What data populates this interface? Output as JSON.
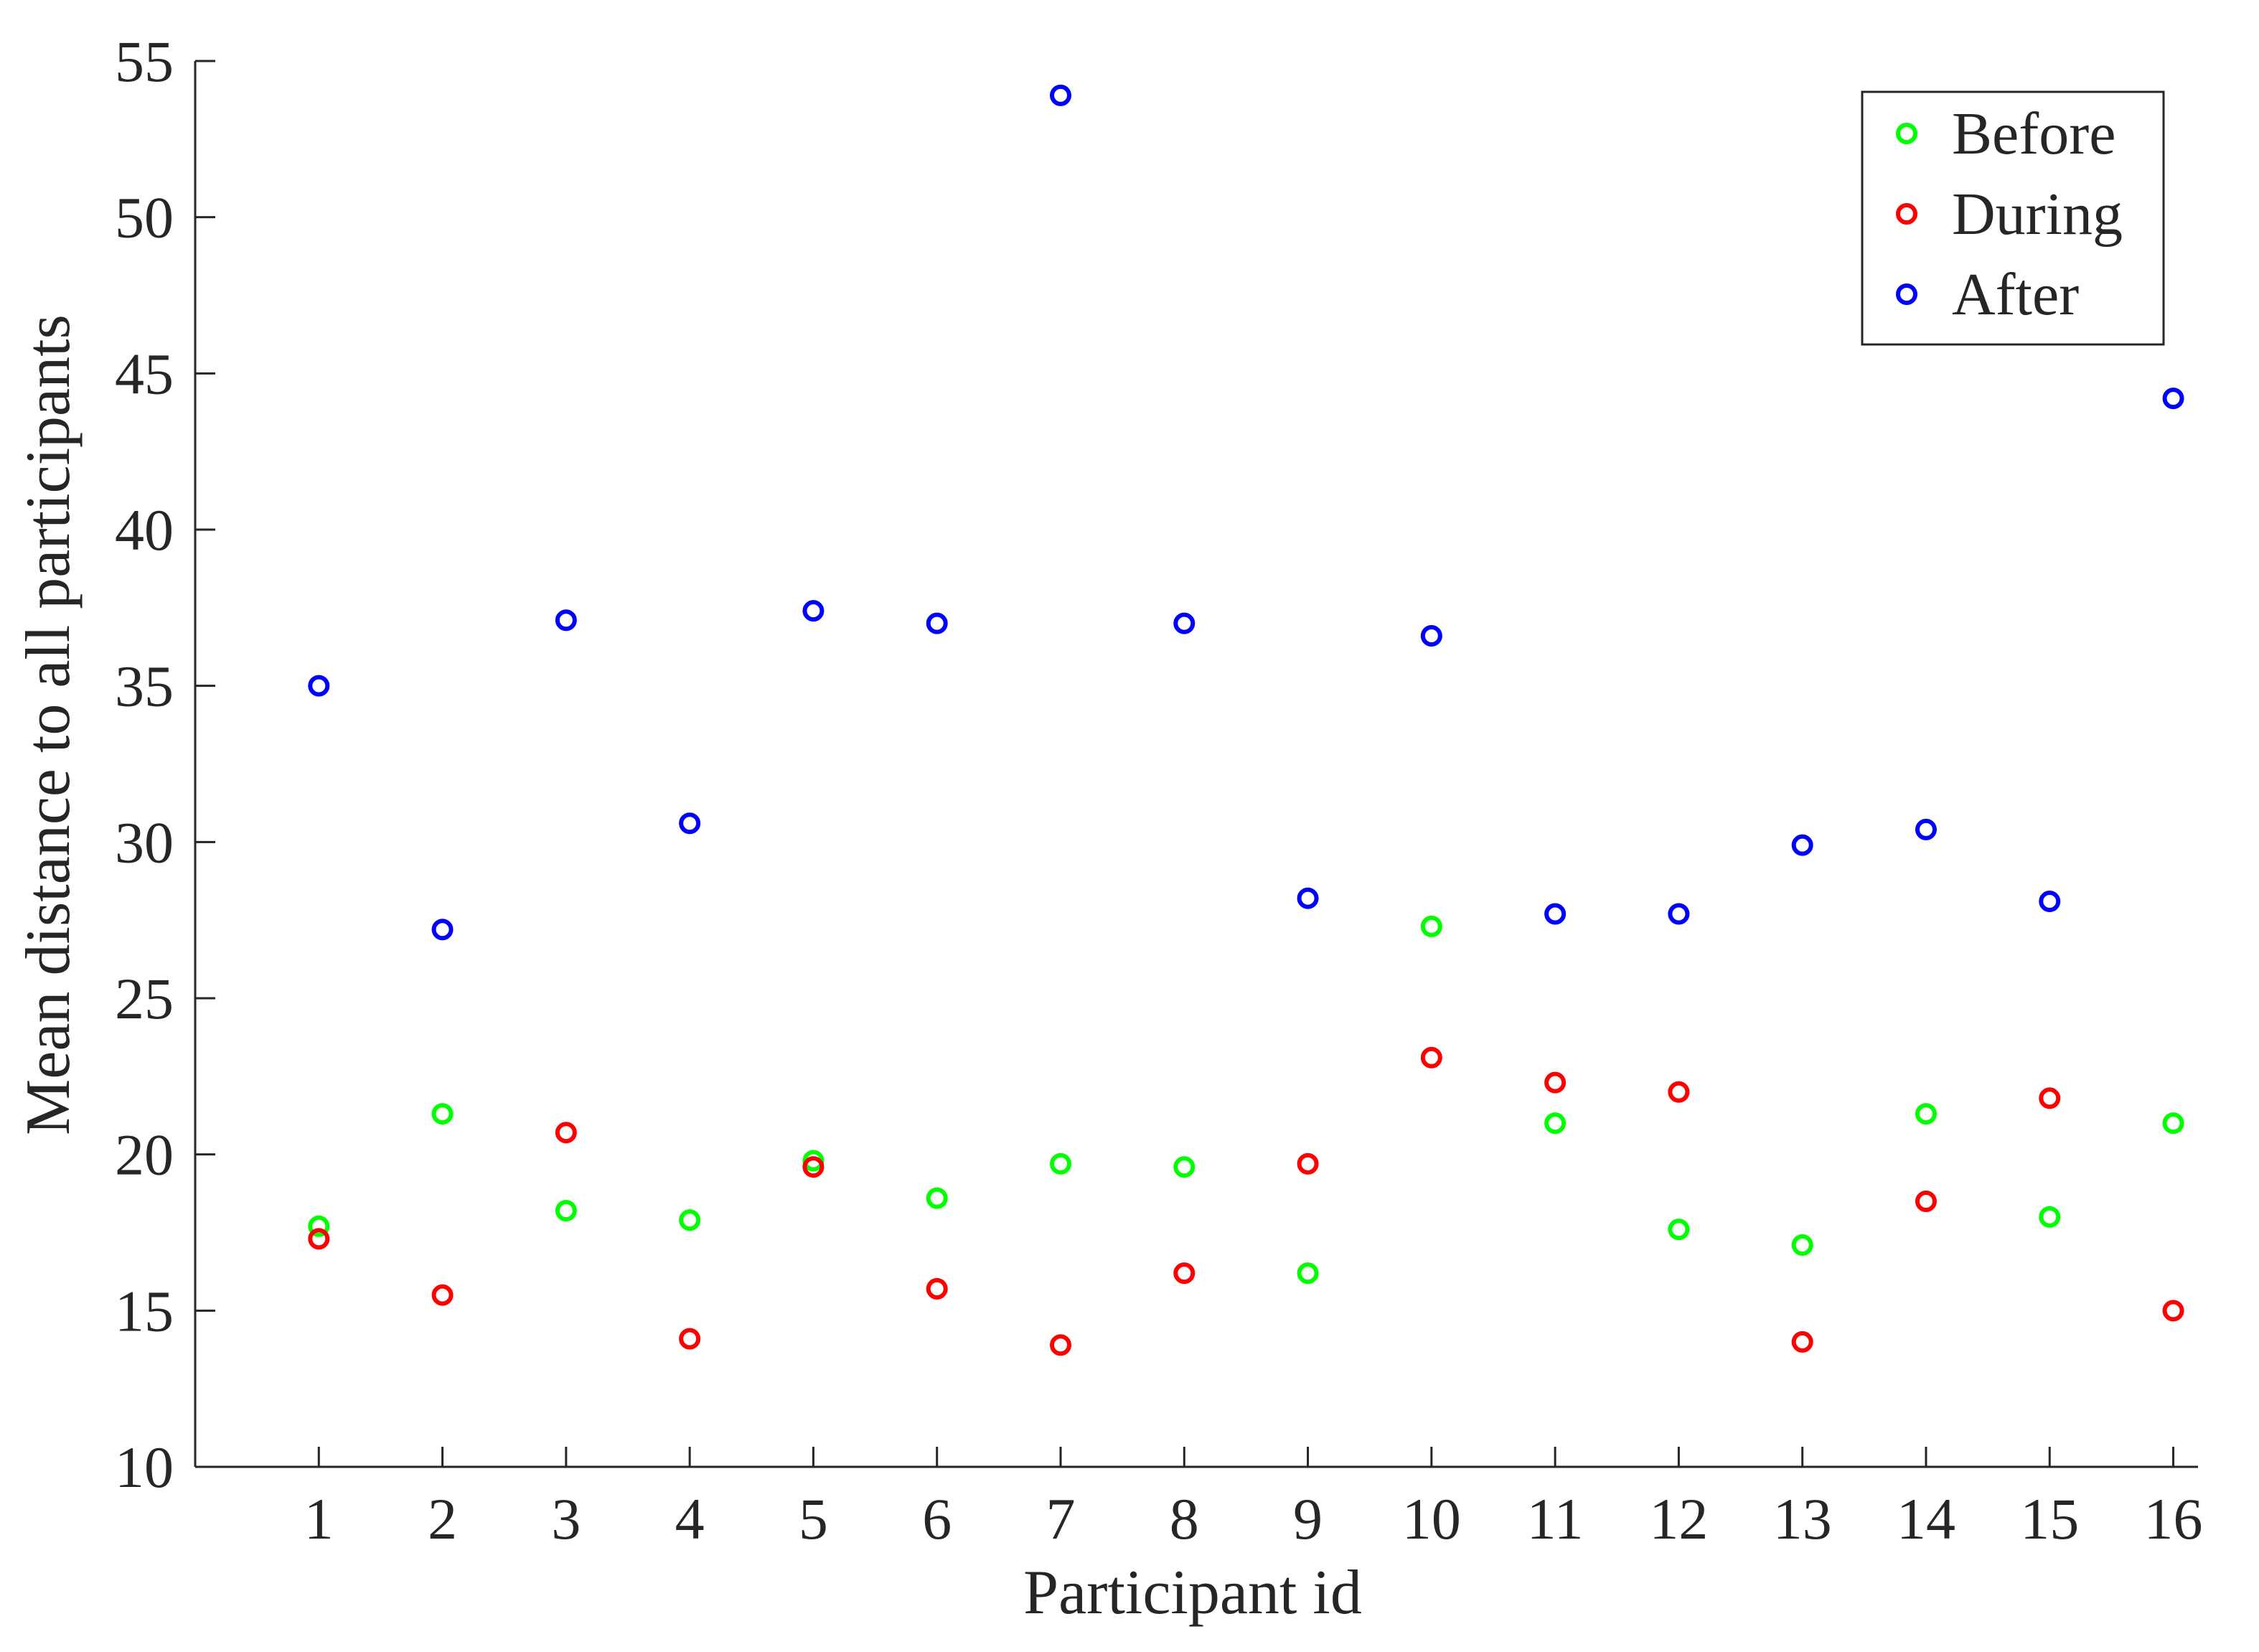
{
  "chart_data": {
    "type": "scatter",
    "xlabel": "Participant id",
    "ylabel": "Mean distance to all participants",
    "xlim": [
      0,
      16.2
    ],
    "ylim": [
      10,
      55
    ],
    "xticks": [
      1,
      2,
      3,
      4,
      5,
      6,
      7,
      8,
      9,
      10,
      11,
      12,
      13,
      14,
      15,
      16
    ],
    "yticks": [
      10,
      15,
      20,
      25,
      30,
      35,
      40,
      45,
      50,
      55
    ],
    "grid": false,
    "legend_position": "top-right",
    "series": [
      {
        "name": "Before",
        "color": "#00ff00",
        "marker": "circle-open",
        "x": [
          1,
          2,
          3,
          4,
          5,
          6,
          7,
          8,
          9,
          10,
          11,
          12,
          13,
          14,
          15,
          16
        ],
        "y": [
          17.7,
          21.3,
          18.2,
          17.9,
          19.8,
          18.6,
          19.7,
          19.6,
          16.2,
          27.3,
          21.0,
          17.6,
          17.1,
          21.3,
          18.0,
          21.0
        ]
      },
      {
        "name": "During",
        "color": "#ff0000",
        "marker": "circle-open",
        "x": [
          1,
          2,
          3,
          4,
          5,
          6,
          7,
          8,
          9,
          10,
          11,
          12,
          13,
          14,
          15,
          16
        ],
        "y": [
          17.3,
          15.5,
          20.7,
          14.1,
          19.6,
          15.7,
          13.9,
          16.2,
          19.7,
          23.1,
          22.3,
          22.0,
          14.0,
          18.5,
          21.8,
          15.0
        ]
      },
      {
        "name": "After",
        "color": "#0000ff",
        "marker": "circle-open",
        "x": [
          1,
          2,
          3,
          4,
          5,
          6,
          7,
          8,
          9,
          10,
          11,
          12,
          13,
          14,
          15,
          16
        ],
        "y": [
          35.0,
          27.2,
          37.1,
          30.6,
          37.4,
          37.0,
          53.9,
          37.0,
          28.2,
          36.6,
          27.7,
          27.7,
          29.9,
          30.4,
          28.1,
          44.2
        ]
      }
    ]
  }
}
